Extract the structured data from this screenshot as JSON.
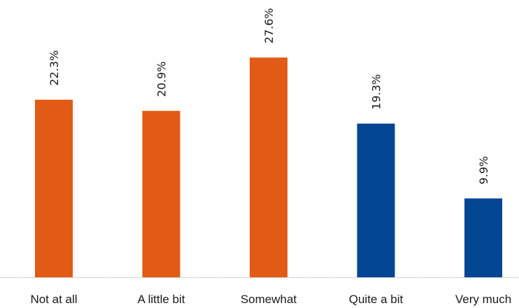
{
  "chart_data": {
    "type": "bar",
    "categories": [
      "Not at all",
      "A little bit",
      "Somewhat",
      "Quite a bit",
      "Very much"
    ],
    "values": [
      22.3,
      20.9,
      27.6,
      19.3,
      9.9
    ],
    "value_labels": [
      "22.3%",
      "20.9%",
      "27.6%",
      "19.3%",
      "9.9%"
    ],
    "unit": "%",
    "ylim": [
      0,
      30
    ],
    "grid": false,
    "bar_colors": [
      "#E15B16",
      "#E15B16",
      "#E15B16",
      "#034694",
      "#034694"
    ],
    "baseline_color": "#A6A6A6",
    "title": "",
    "xlabel": "",
    "ylabel": ""
  }
}
